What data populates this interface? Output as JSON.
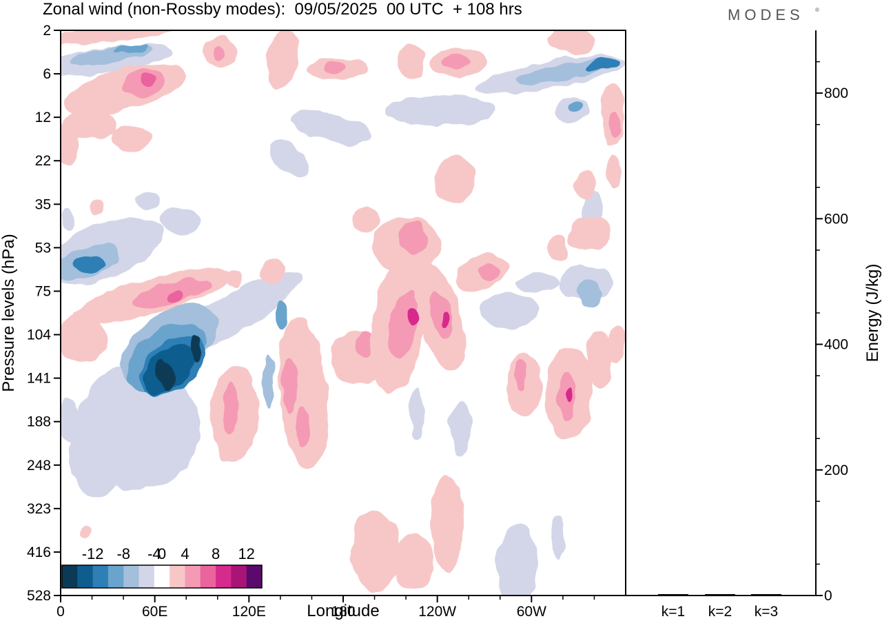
{
  "header": {
    "title": "Zonal wind (non-Rossby modes):  09/05/2025  00 UTC  + 108 hrs",
    "brand": "MODES",
    "brand_mark": "®"
  },
  "chart_data": [
    {
      "type": "heatmap",
      "xlabel": "Longitude",
      "ylabel": "Pressure levels (hPa)",
      "x_ticks": [
        "0",
        "60E",
        "120E",
        "180",
        "120W",
        "60W"
      ],
      "x_tick_degrees": [
        0,
        60,
        120,
        180,
        240,
        300
      ],
      "xlim": [
        0,
        360
      ],
      "y_ticks": [
        "2",
        "6",
        "12",
        "22",
        "35",
        "53",
        "75",
        "104",
        "141",
        "188",
        "248",
        "323",
        "416",
        "528"
      ],
      "colorbar": {
        "labels": [
          "-12",
          "-8",
          "-4",
          "0",
          "4",
          "8",
          "12"
        ],
        "levels": [
          -14,
          -12,
          -10,
          -8,
          -6,
          -4,
          -2,
          2,
          4,
          6,
          8,
          10,
          12,
          14
        ],
        "colors": [
          "#0b3a57",
          "#0e5d8e",
          "#2d7fb6",
          "#6aa4cc",
          "#a3bfdc",
          "#d3d6e8",
          "#ffffff",
          "#f7c7c7",
          "#f59ab4",
          "#ea649e",
          "#d62a8c",
          "#a81577",
          "#5b0a6b"
        ]
      },
      "features": [
        {
          "lon": 65,
          "level": 141,
          "value": -14
        },
        {
          "lon": 85,
          "level": 120,
          "value": -12
        },
        {
          "lon": 20,
          "level": 6,
          "value": -8
        },
        {
          "lon": 345,
          "level": 6,
          "value": -8
        },
        {
          "lon": 20,
          "level": 60,
          "value": -8
        },
        {
          "lon": 235,
          "level": 104,
          "value": 8
        },
        {
          "lon": 250,
          "level": 110,
          "value": 8
        },
        {
          "lon": 325,
          "level": 160,
          "value": 8
        },
        {
          "lon": 60,
          "level": 80,
          "value": 8
        }
      ]
    },
    {
      "type": "bar",
      "categories": [
        "k=1",
        "k=2",
        "k=3"
      ],
      "values": [
        2,
        2,
        1
      ],
      "ylabel": "Energy (J/kg)",
      "y_ticks": [
        "0",
        "200",
        "400",
        "600",
        "800"
      ],
      "ylim": [
        0,
        900
      ]
    }
  ]
}
